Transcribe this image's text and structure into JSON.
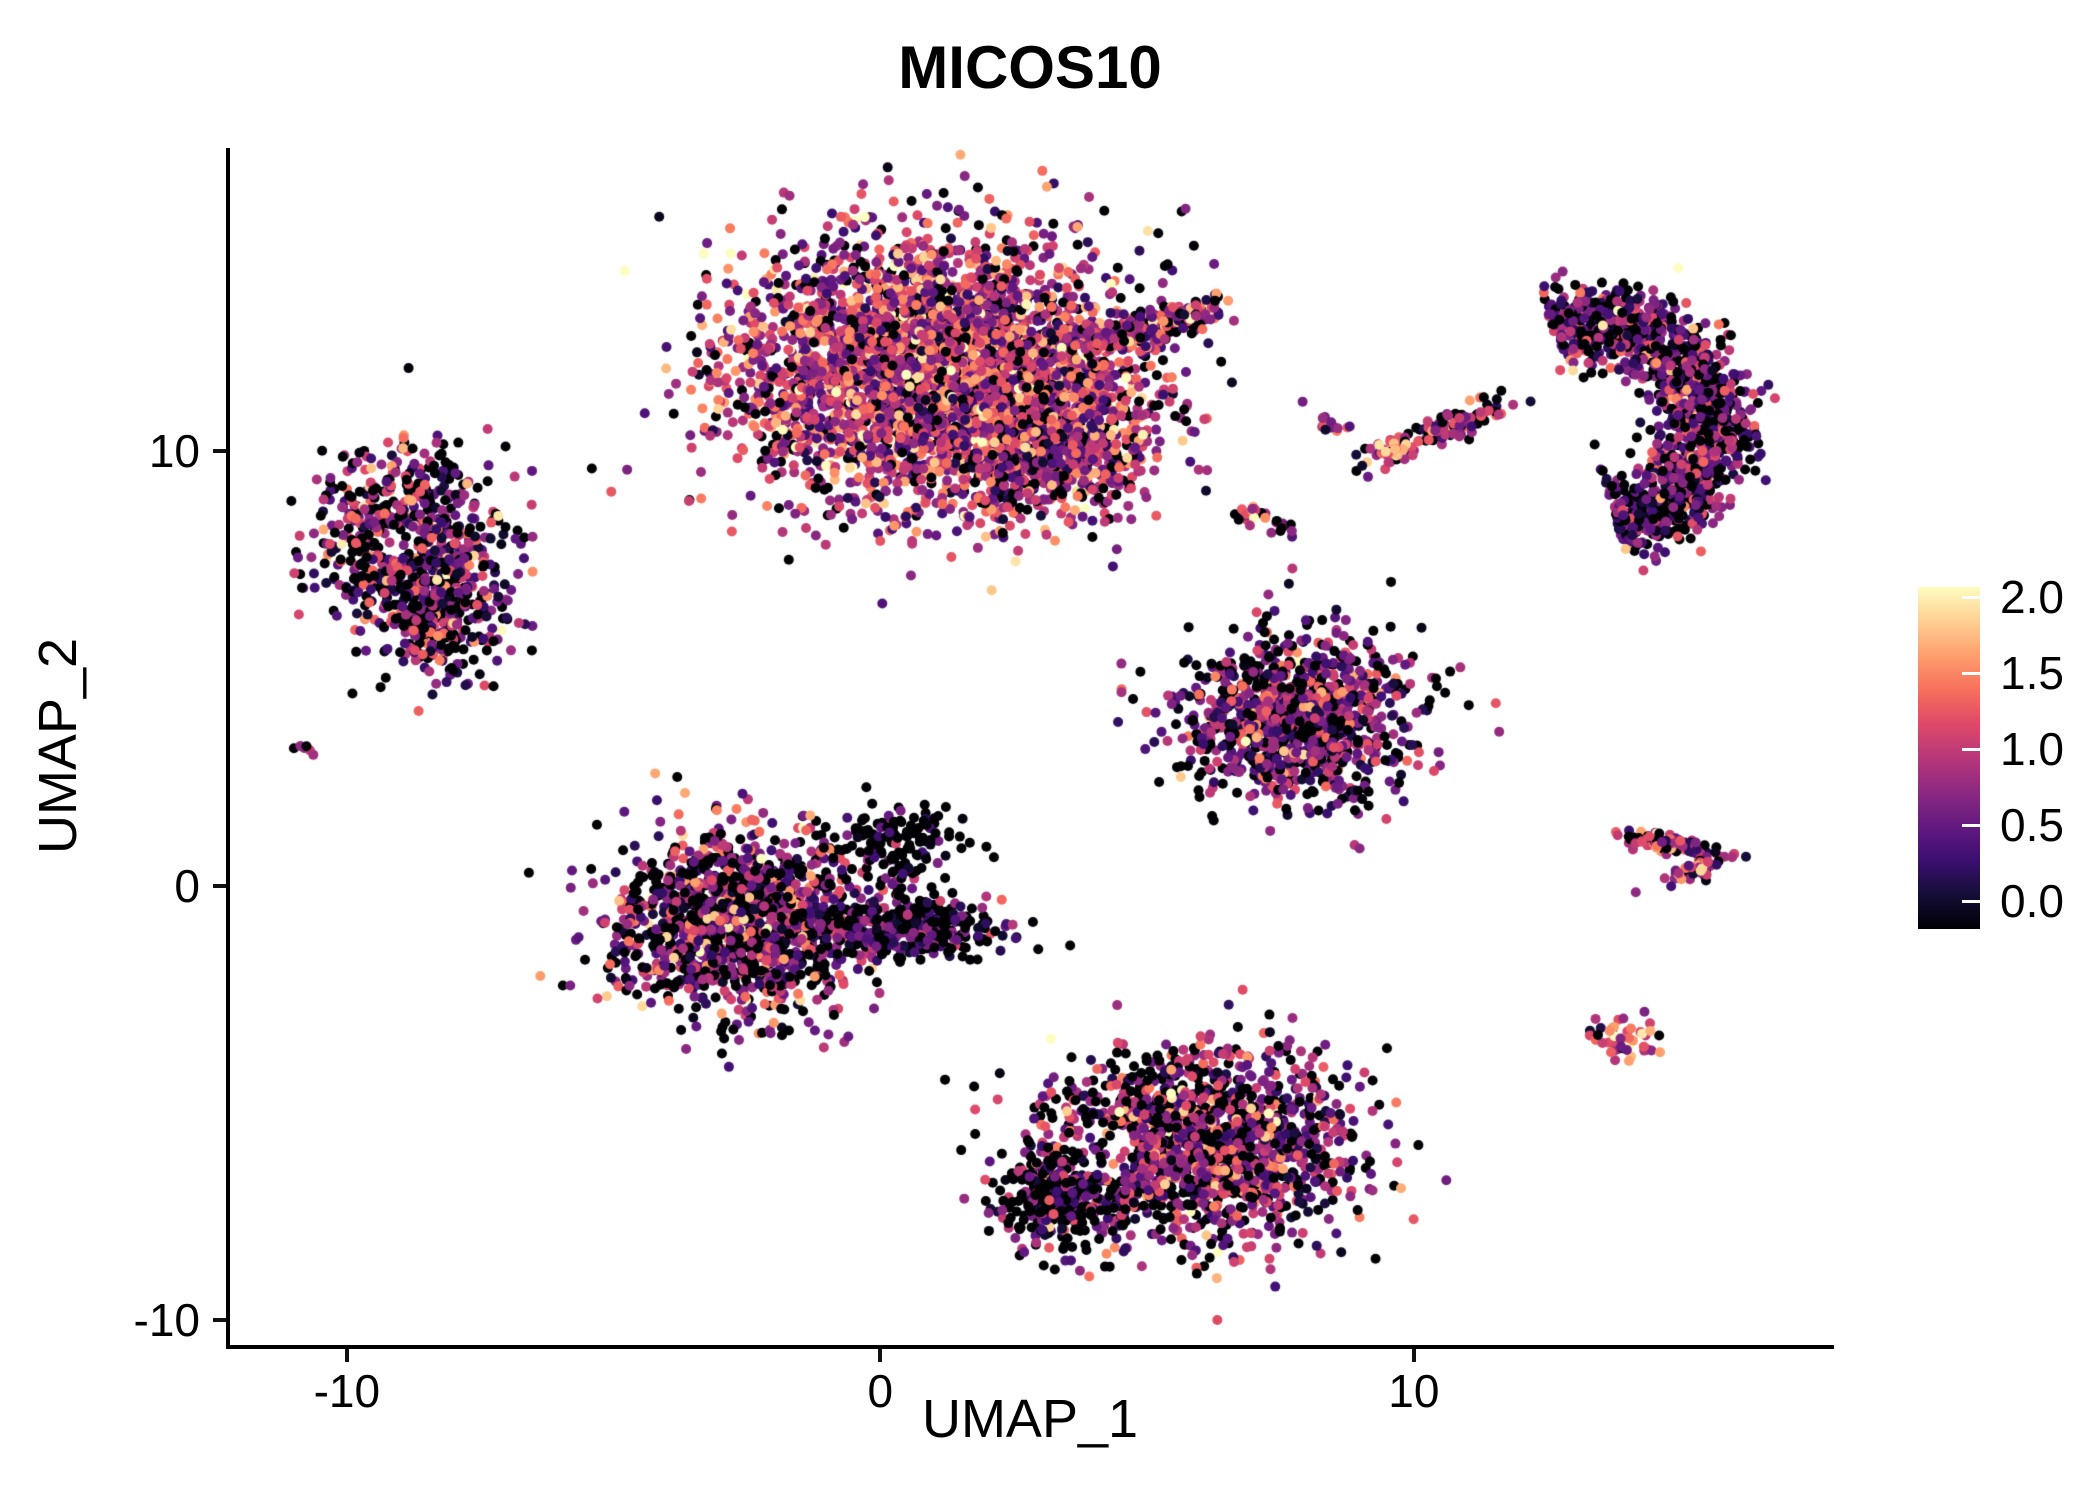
{
  "chart_data": {
    "type": "scatter",
    "title": "MICOS10",
    "xlabel": "UMAP_1",
    "ylabel": "UMAP_2",
    "x_ticks": [
      {
        "value": -10,
        "label": "-10"
      },
      {
        "value": 0,
        "label": "0"
      },
      {
        "value": 10,
        "label": "10"
      }
    ],
    "y_ticks": [
      {
        "value": 10,
        "label": "10"
      },
      {
        "value": 0,
        "label": "0"
      },
      {
        "value": -10,
        "label": "-10"
      }
    ],
    "x_domain": [
      -12.19,
      17.8
    ],
    "y_domain": [
      -10.57,
      16.97
    ],
    "grid": false,
    "legend_position": "right",
    "legend": {
      "range": [
        0,
        2
      ],
      "ticks": [
        {
          "value": 0.0,
          "label": "0.0"
        },
        {
          "value": 0.5,
          "label": "0.5"
        },
        {
          "value": 1.0,
          "label": "1.0"
        },
        {
          "value": 1.5,
          "label": "1.5"
        },
        {
          "value": 2.0,
          "label": "2.0"
        }
      ]
    },
    "colormap": {
      "name": "magma",
      "stops": [
        [
          0.0,
          "#000004"
        ],
        [
          0.1,
          "#140e36"
        ],
        [
          0.2,
          "#3b0f70"
        ],
        [
          0.3,
          "#631980"
        ],
        [
          0.4,
          "#8c2981"
        ],
        [
          0.5,
          "#b73779"
        ],
        [
          0.6,
          "#de4968"
        ],
        [
          0.7,
          "#f7705c"
        ],
        [
          0.8,
          "#fe9f6d"
        ],
        [
          0.9,
          "#fecf92"
        ],
        [
          1.0,
          "#fcfdbf"
        ]
      ]
    },
    "colors": {
      "background": "#ffffff",
      "axis": "#000000",
      "text": "#000000",
      "zero_expression": "#000004"
    },
    "point_radius": 5,
    "seed": 42,
    "clusters": [
      {
        "name": "left-upper-main",
        "type": "gauss",
        "center": [
          -8.9,
          8.0
        ],
        "sd": [
          0.9,
          1.0
        ],
        "n": 650,
        "zero_frac": 0.28,
        "mean": 0.8,
        "vsd": 0.5,
        "holes": [
          {
            "c": [
              -9.0,
              7.9
            ],
            "r": 0.42,
            "p": 0.85
          }
        ]
      },
      {
        "name": "left-upper-lower-lobe",
        "type": "gauss",
        "center": [
          -8.2,
          6.1
        ],
        "sd": [
          0.65,
          0.7
        ],
        "n": 300,
        "zero_frac": 0.28,
        "mean": 0.8,
        "vsd": 0.5
      },
      {
        "name": "left-tiny",
        "type": "gauss",
        "center": [
          -10.8,
          3.1
        ],
        "sd": [
          0.12,
          0.1
        ],
        "n": 6,
        "zero_frac": 0.15,
        "mean": 1.2,
        "vsd": 0.45
      },
      {
        "name": "top-main",
        "type": "gauss",
        "center": [
          1.0,
          11.8
        ],
        "sd": [
          1.75,
          1.5
        ],
        "n": 3800,
        "zero_frac": 0.13,
        "mean": 1.0,
        "vsd": 0.45
      },
      {
        "name": "top-main-lower-lobe",
        "type": "gauss",
        "center": [
          3.2,
          10.3
        ],
        "sd": [
          1.0,
          0.85
        ],
        "n": 800,
        "zero_frac": 0.18,
        "mean": 0.95,
        "vsd": 0.45
      },
      {
        "name": "top-arm",
        "type": "gauss",
        "center": [
          5.05,
          12.85
        ],
        "sd": [
          0.75,
          0.2
        ],
        "rot": 21,
        "n": 260,
        "zero_frac": 0.15,
        "mean": 0.9,
        "vsd": 0.45
      },
      {
        "name": "mid-dots-a",
        "type": "gauss",
        "center": [
          8.45,
          10.6
        ],
        "sd": [
          0.15,
          0.1
        ],
        "n": 14,
        "zero_frac": 0.1,
        "mean": 0.9,
        "vsd": 0.4
      },
      {
        "name": "mid-streak",
        "type": "gauss",
        "center": [
          10.45,
          10.45
        ],
        "sd": [
          0.8,
          0.16
        ],
        "rot": 27,
        "n": 140,
        "zero_frac": 0.2,
        "mean": 0.9,
        "vsd": 0.45
      },
      {
        "name": "mid-streak-hotspot",
        "type": "gauss",
        "center": [
          9.55,
          10.0
        ],
        "sd": [
          0.12,
          0.1
        ],
        "n": 14,
        "zero_frac": 0.0,
        "mean": 1.5,
        "vsd": 0.3
      },
      {
        "name": "mid-dots-b",
        "type": "gauss",
        "center": [
          6.95,
          8.55
        ],
        "sd": [
          0.14,
          0.12
        ],
        "n": 18,
        "zero_frac": 0.1,
        "mean": 1.2,
        "vsd": 0.5
      },
      {
        "name": "mid-dots-c",
        "type": "gauss",
        "center": [
          7.5,
          8.25
        ],
        "sd": [
          0.12,
          0.1
        ],
        "n": 12,
        "zero_frac": 0.2,
        "mean": 0.7,
        "vsd": 0.4
      },
      {
        "name": "right-crescent",
        "type": "arc",
        "center": [
          13.2,
          10.6
        ],
        "radius": 2.4,
        "thick": 0.45,
        "a0": -75,
        "a1": 105,
        "n": 1400,
        "zero_frac": 0.3,
        "mean": 0.7,
        "vsd": 0.42
      },
      {
        "name": "mid-right-triangle",
        "type": "gauss",
        "center": [
          7.8,
          3.9
        ],
        "sd": [
          1.1,
          0.95
        ],
        "n": 1100,
        "zero_frac": 0.28,
        "mean": 0.75,
        "vsd": 0.45
      },
      {
        "name": "far-right-arrow-upper",
        "type": "gauss",
        "center": [
          14.85,
          0.95
        ],
        "sd": [
          0.6,
          0.1
        ],
        "rot": -12,
        "n": 85,
        "zero_frac": 0.15,
        "mean": 0.95,
        "vsd": 0.45
      },
      {
        "name": "far-right-arrow-lower",
        "type": "gauss",
        "center": [
          15.2,
          0.33
        ],
        "sd": [
          0.4,
          0.1
        ],
        "rot": 25,
        "n": 50,
        "zero_frac": 0.15,
        "mean": 0.95,
        "vsd": 0.45
      },
      {
        "name": "center-left-main",
        "type": "gauss",
        "center": [
          -2.6,
          -0.9
        ],
        "sd": [
          1.15,
          1.0
        ],
        "n": 1500,
        "zero_frac": 0.3,
        "mean": 0.8,
        "vsd": 0.5
      },
      {
        "name": "center-left-tail",
        "type": "gauss",
        "center": [
          0.6,
          -0.95
        ],
        "sd": [
          0.8,
          0.35
        ],
        "rot": -5,
        "n": 300,
        "zero_frac": 0.45,
        "mean": 0.55,
        "vsd": 0.4
      },
      {
        "name": "center-left-sparse",
        "type": "gauss",
        "center": [
          0.3,
          1.0
        ],
        "sd": [
          0.6,
          0.45
        ],
        "n": 130,
        "zero_frac": 0.7,
        "mean": 0.35,
        "vsd": 0.35
      },
      {
        "name": "bottom-main",
        "type": "gauss",
        "center": [
          5.9,
          -6.0
        ],
        "sd": [
          1.5,
          1.1
        ],
        "n": 1700,
        "zero_frac": 0.28,
        "mean": 0.8,
        "vsd": 0.45,
        "holes": [
          {
            "c": [
              4.2,
              -6.1
            ],
            "r": 0.6,
            "p": 0.85
          }
        ]
      },
      {
        "name": "bottom-left-dark",
        "type": "gauss",
        "center": [
          3.3,
          -7.2
        ],
        "sd": [
          0.5,
          0.6
        ],
        "n": 250,
        "zero_frac": 0.5,
        "mean": 0.5,
        "vsd": 0.45
      },
      {
        "name": "bottom-right-small",
        "type": "gauss",
        "center": [
          14.0,
          -3.6
        ],
        "sd": [
          0.27,
          0.22
        ],
        "n": 50,
        "zero_frac": 0.15,
        "mean": 0.95,
        "vsd": 0.5
      }
    ]
  }
}
